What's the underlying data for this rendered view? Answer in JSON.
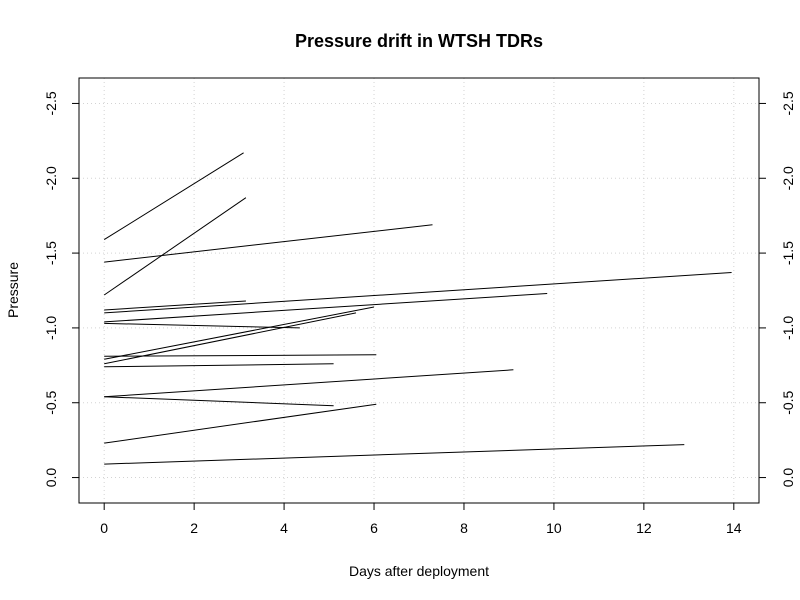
{
  "chart_data": {
    "type": "line",
    "title": "Pressure drift in WTSH TDRs",
    "xlabel": "Days after deployment",
    "ylabel": "Pressure",
    "xlim": [
      -0.56,
      14.56
    ],
    "ylim": [
      0.17,
      -2.67
    ],
    "y_reversed": true,
    "x_ticks": [
      0,
      2,
      4,
      6,
      8,
      10,
      12,
      14
    ],
    "x_tick_labels": [
      "0",
      "2",
      "4",
      "6",
      "8",
      "10",
      "12",
      "14"
    ],
    "y_ticks": [
      0.0,
      -0.5,
      -1.0,
      -1.5,
      -2.0,
      -2.5
    ],
    "y_tick_labels": [
      "0.0",
      "-0.5",
      "-1.0",
      "-1.5",
      "-2.0",
      "-2.5"
    ],
    "grid": true,
    "colors": {
      "lines": "#000000",
      "grid": "#d3d3d3",
      "frame": "#000000"
    },
    "series": [
      {
        "x": [
          0,
          3.1
        ],
        "y": [
          -1.59,
          -2.17
        ]
      },
      {
        "x": [
          0,
          3.15
        ],
        "y": [
          -1.22,
          -1.87
        ]
      },
      {
        "x": [
          0,
          7.3
        ],
        "y": [
          -1.44,
          -1.69
        ]
      },
      {
        "x": [
          0,
          13.95
        ],
        "y": [
          -1.1,
          -1.37
        ]
      },
      {
        "x": [
          0,
          3.15
        ],
        "y": [
          -1.12,
          -1.18
        ]
      },
      {
        "x": [
          0,
          9.85
        ],
        "y": [
          -1.04,
          -1.23
        ]
      },
      {
        "x": [
          0,
          4.35
        ],
        "y": [
          -1.03,
          -1.0
        ]
      },
      {
        "x": [
          0,
          6.0
        ],
        "y": [
          -0.79,
          -1.14
        ]
      },
      {
        "x": [
          0,
          5.6
        ],
        "y": [
          -0.76,
          -1.1
        ]
      },
      {
        "x": [
          0,
          6.05
        ],
        "y": [
          -0.81,
          -0.82
        ]
      },
      {
        "x": [
          0,
          5.1
        ],
        "y": [
          -0.74,
          -0.76
        ]
      },
      {
        "x": [
          0,
          9.1
        ],
        "y": [
          -0.54,
          -0.72
        ]
      },
      {
        "x": [
          0,
          5.1
        ],
        "y": [
          -0.54,
          -0.48
        ]
      },
      {
        "x": [
          0,
          6.05
        ],
        "y": [
          -0.23,
          -0.49
        ]
      },
      {
        "x": [
          0,
          12.9
        ],
        "y": [
          -0.09,
          -0.22
        ]
      }
    ]
  }
}
